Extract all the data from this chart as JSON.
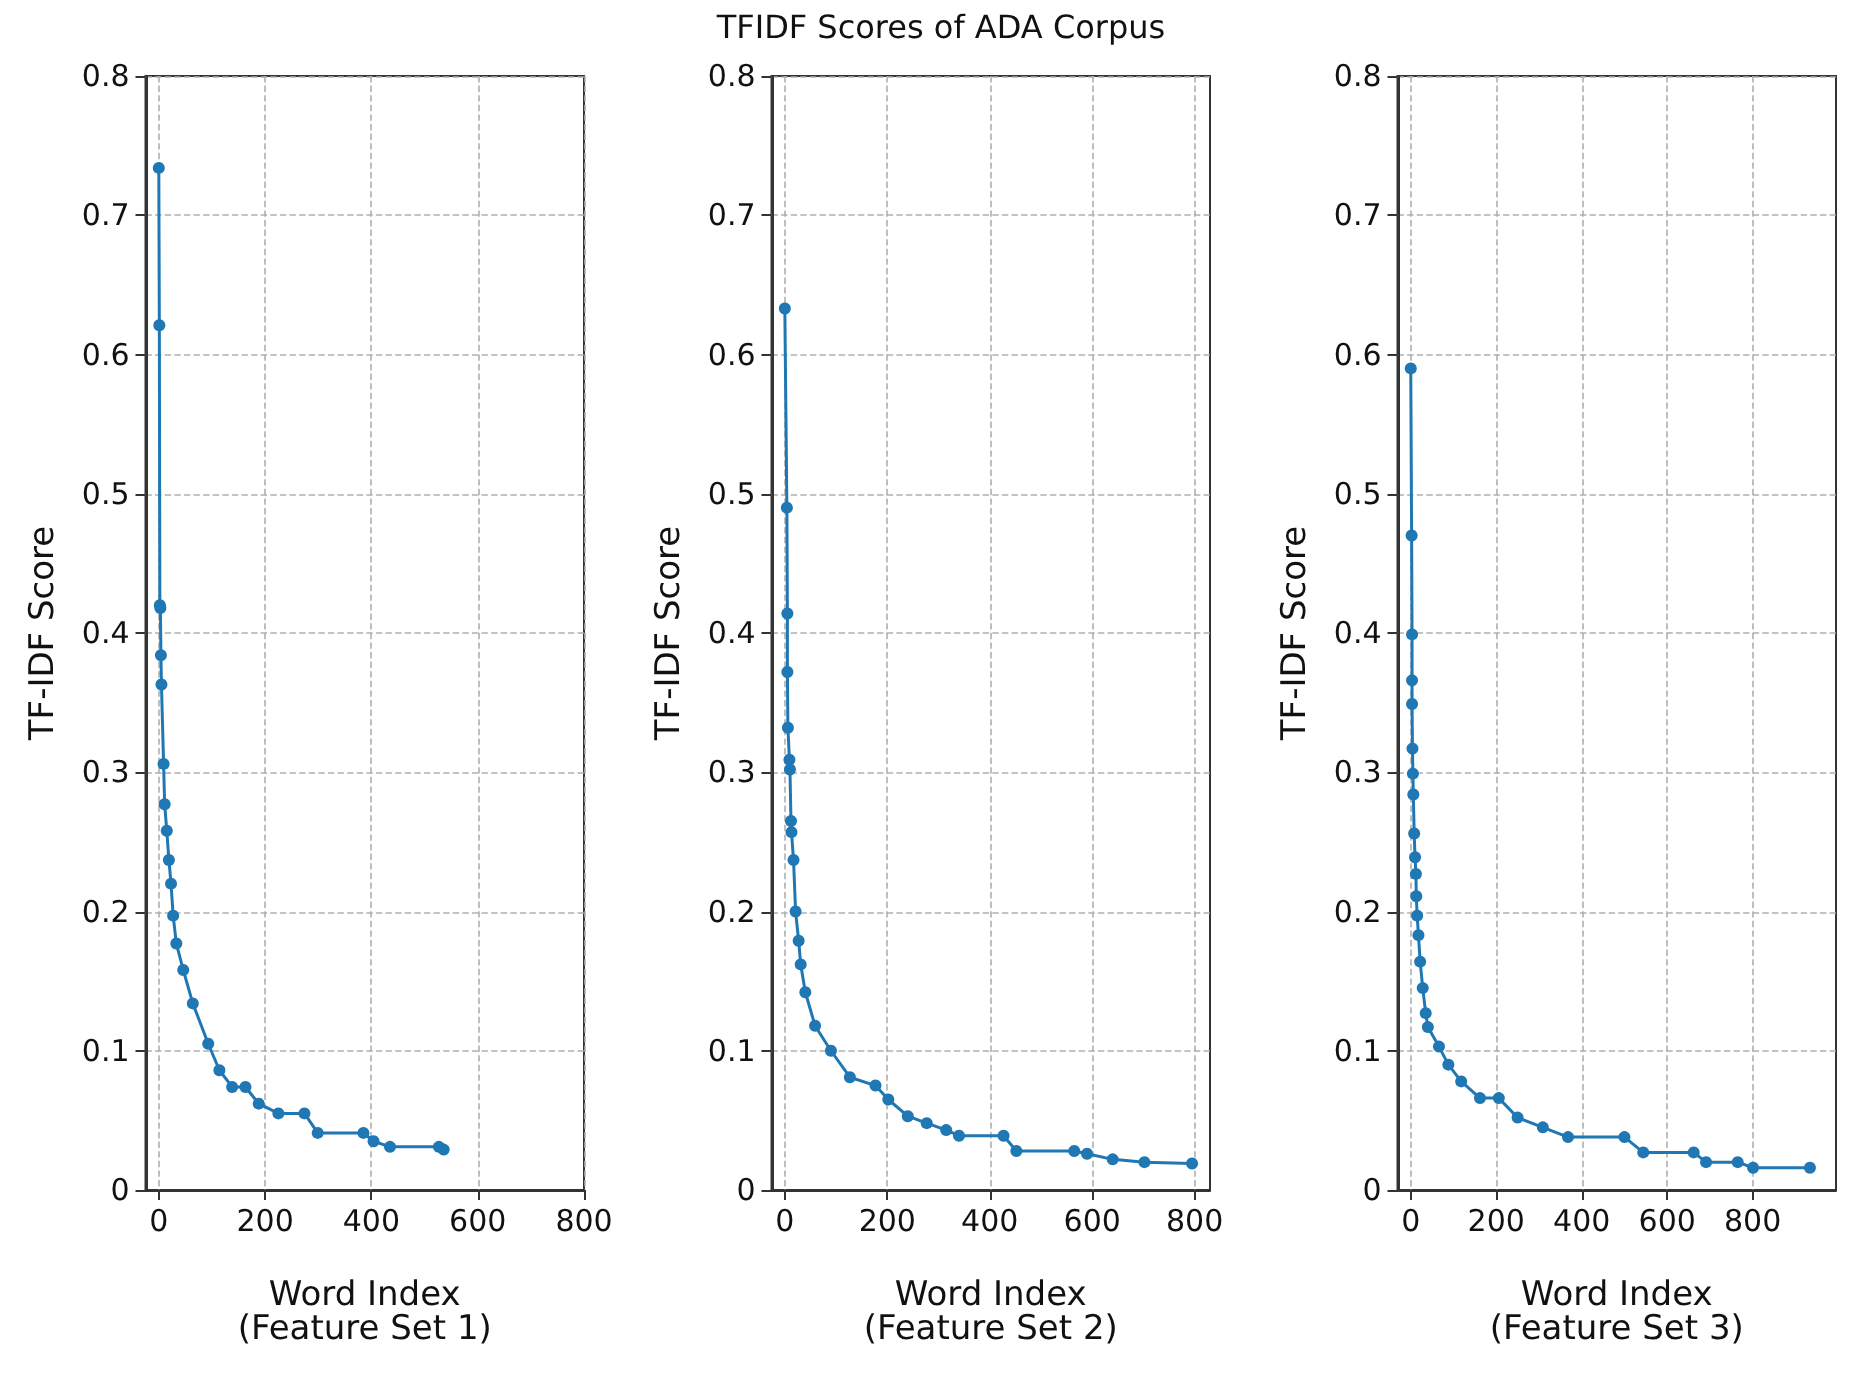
{
  "chart_data": [
    {
      "type": "line",
      "xlabel": "Word Index\n(Feature Set 1)",
      "ylabel": "TF-IDF Score",
      "color": "#1f77b4",
      "marker": "circle",
      "line_style": "solid",
      "grid": true,
      "xlim": [
        -25,
        800
      ],
      "ylim": [
        0,
        0.8
      ],
      "xticks": [
        0,
        200,
        400,
        600,
        800
      ],
      "yticks": [
        0,
        0.1,
        0.2,
        0.3,
        0.4,
        0.5,
        0.6,
        0.7,
        0.8
      ],
      "x": [
        0,
        1,
        2,
        3,
        4,
        5,
        9,
        11,
        15,
        19,
        23,
        27,
        33,
        46,
        64,
        93,
        114,
        138,
        163,
        188,
        225,
        274,
        299,
        385,
        404,
        435,
        527,
        536
      ],
      "values": [
        0.734,
        0.621,
        0.42,
        0.418,
        0.384,
        0.363,
        0.306,
        0.277,
        0.258,
        0.237,
        0.22,
        0.197,
        0.177,
        0.158,
        0.134,
        0.105,
        0.086,
        0.074,
        0.074,
        0.062,
        0.055,
        0.055,
        0.041,
        0.041,
        0.035,
        0.031,
        0.031,
        0.029
      ]
    },
    {
      "type": "line",
      "title": "TFIDF Scores of ADA Corpus",
      "xlabel": "Word Index\n(Feature Set 2)",
      "ylabel": "TF-IDF Score",
      "color": "#1f77b4",
      "marker": "circle",
      "line_style": "solid",
      "grid": true,
      "xlim": [
        -26,
        830
      ],
      "ylim": [
        0,
        0.8
      ],
      "xticks": [
        0,
        200,
        400,
        600,
        800
      ],
      "yticks": [
        0,
        0.1,
        0.2,
        0.3,
        0.4,
        0.5,
        0.6,
        0.7,
        0.8
      ],
      "x": [
        0,
        4,
        5,
        5,
        6,
        9,
        10,
        12,
        13,
        17,
        21,
        27,
        31,
        40,
        59,
        90,
        127,
        177,
        202,
        240,
        277,
        315,
        340,
        427,
        452,
        565,
        590,
        640,
        702,
        795
      ],
      "values": [
        0.633,
        0.49,
        0.414,
        0.372,
        0.332,
        0.309,
        0.302,
        0.265,
        0.257,
        0.237,
        0.2,
        0.179,
        0.162,
        0.142,
        0.118,
        0.1,
        0.081,
        0.075,
        0.065,
        0.053,
        0.048,
        0.043,
        0.039,
        0.039,
        0.028,
        0.028,
        0.026,
        0.022,
        0.02,
        0.019
      ]
    },
    {
      "type": "line",
      "xlabel": "Word Index\n(Feature Set 3)",
      "ylabel": "TF-IDF Score",
      "color": "#1f77b4",
      "marker": "circle",
      "line_style": "solid",
      "grid": true,
      "xlim": [
        -31,
        995
      ],
      "ylim": [
        0,
        0.8
      ],
      "xticks": [
        0,
        200,
        400,
        600,
        800
      ],
      "yticks": [
        0,
        0.1,
        0.2,
        0.3,
        0.4,
        0.5,
        0.6,
        0.7,
        0.8
      ],
      "x": [
        0,
        2,
        3,
        3,
        3,
        4,
        5,
        6,
        8,
        10,
        12,
        13,
        15,
        18,
        22,
        28,
        35,
        40,
        66,
        88,
        118,
        162,
        206,
        250,
        309,
        368,
        500,
        544,
        662,
        691,
        765,
        801,
        934
      ],
      "values": [
        0.59,
        0.47,
        0.399,
        0.366,
        0.349,
        0.317,
        0.299,
        0.284,
        0.256,
        0.239,
        0.227,
        0.211,
        0.197,
        0.183,
        0.164,
        0.145,
        0.127,
        0.117,
        0.103,
        0.09,
        0.078,
        0.066,
        0.066,
        0.052,
        0.045,
        0.038,
        0.038,
        0.027,
        0.027,
        0.02,
        0.02,
        0.016,
        0.016
      ]
    }
  ]
}
